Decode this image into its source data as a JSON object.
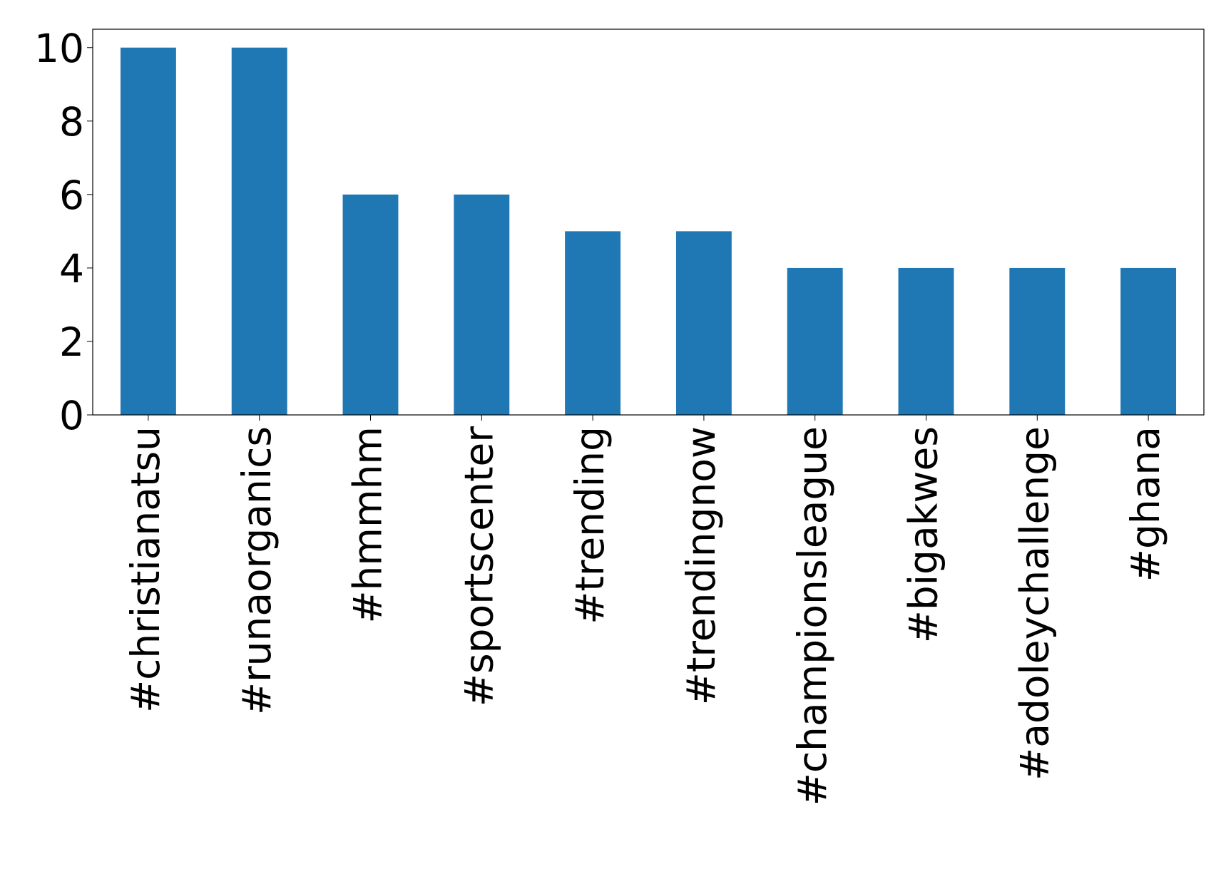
{
  "chart_data": {
    "type": "bar",
    "categories": [
      "#christianatsu",
      "#runaorganics",
      "#hmmhm",
      "#sportscenter",
      "#trending",
      "#trendingnow",
      "#championsleague",
      "#bigakwes",
      "#adoleychallenge",
      "#ghana"
    ],
    "values": [
      10,
      10,
      6,
      6,
      5,
      5,
      4,
      4,
      4,
      4
    ],
    "color": "#1f77b4",
    "ylim": [
      0,
      10.5
    ],
    "yticks": [
      0,
      2,
      4,
      6,
      8,
      10
    ],
    "grid": false
  }
}
